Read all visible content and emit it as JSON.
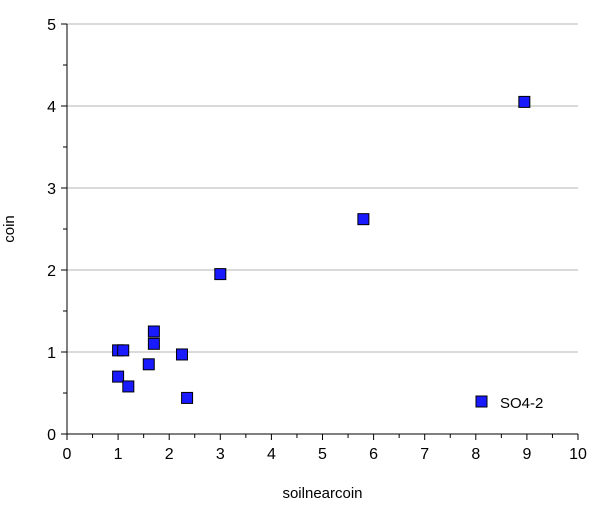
{
  "chart_data": {
    "type": "scatter",
    "title": "",
    "xlabel": "soilnearcoin",
    "ylabel": "coin",
    "xlim": [
      0,
      10
    ],
    "ylim": [
      0,
      5
    ],
    "xticks": [
      "0",
      "1",
      "2",
      "3",
      "4",
      "5",
      "6",
      "7",
      "8",
      "9",
      "10"
    ],
    "yticks": [
      "0",
      "1",
      "2",
      "3",
      "4",
      "5"
    ],
    "grid": "horizontal",
    "legend_position": "bottom-right",
    "marker_color": "#1a1aff",
    "series": [
      {
        "name": "SO4-2",
        "points": [
          {
            "x": 1.0,
            "y": 1.02
          },
          {
            "x": 1.1,
            "y": 1.02
          },
          {
            "x": 1.0,
            "y": 0.7
          },
          {
            "x": 1.2,
            "y": 0.58
          },
          {
            "x": 1.6,
            "y": 0.85
          },
          {
            "x": 1.7,
            "y": 1.25
          },
          {
            "x": 1.7,
            "y": 1.1
          },
          {
            "x": 2.25,
            "y": 0.97
          },
          {
            "x": 2.35,
            "y": 0.44
          },
          {
            "x": 3.0,
            "y": 1.95
          },
          {
            "x": 5.8,
            "y": 2.62
          },
          {
            "x": 8.95,
            "y": 4.05
          }
        ]
      }
    ]
  }
}
